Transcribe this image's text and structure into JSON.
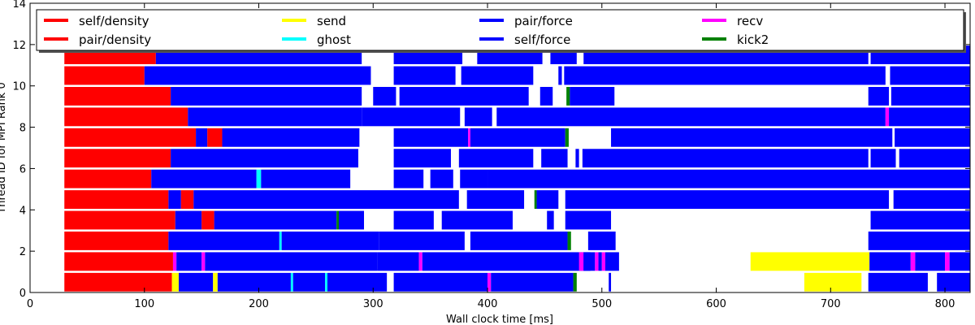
{
  "chart_data": {
    "type": "bar",
    "subtype": "horizontal-gantt",
    "title": "",
    "xlabel": "Wall clock time [ms]",
    "ylabel": "Thread ID for MPI Rank 0",
    "xlim": [
      0,
      822
    ],
    "ylim": [
      0,
      14
    ],
    "xticks": [
      0,
      100,
      200,
      300,
      400,
      500,
      600,
      700,
      800
    ],
    "yticks": [
      0,
      2,
      4,
      6,
      8,
      10,
      12,
      14
    ],
    "grid": false,
    "legend": {
      "placement": "top",
      "columns": 5,
      "entries": [
        {
          "name": "self/density",
          "color": "#ff0000"
        },
        {
          "name": "pair/density",
          "color": "#ff0000"
        },
        {
          "name": "send",
          "color": "#ffff00"
        },
        {
          "name": "ghost",
          "color": "#00ffff"
        },
        {
          "name": "pair/force",
          "color": "#0000ff"
        },
        {
          "name": "self/force",
          "color": "#0000ff"
        },
        {
          "name": "recv",
          "color": "#ff00ff"
        },
        {
          "name": "kick2",
          "color": "#008000"
        }
      ]
    },
    "colors": {
      "density": "#ff0000",
      "send": "#ffff00",
      "ghost": "#00ffff",
      "force": "#0000ff",
      "recv": "#ff00ff",
      "kick2": "#008000"
    },
    "threads": [
      {
        "id": 0,
        "tasks": [
          {
            "type": "density",
            "start": 30,
            "end": 124
          },
          {
            "type": "send",
            "start": 124,
            "end": 130
          },
          {
            "type": "force",
            "start": 130,
            "end": 160
          },
          {
            "type": "send",
            "start": 160,
            "end": 164
          },
          {
            "type": "force",
            "start": 164,
            "end": 228
          },
          {
            "type": "ghost",
            "start": 228,
            "end": 230
          },
          {
            "type": "force",
            "start": 230,
            "end": 258
          },
          {
            "type": "ghost",
            "start": 258,
            "end": 260
          },
          {
            "type": "force",
            "start": 260,
            "end": 312
          },
          {
            "type": "force",
            "start": 318,
            "end": 400
          },
          {
            "type": "recv",
            "start": 400,
            "end": 403
          },
          {
            "type": "force",
            "start": 403,
            "end": 475
          },
          {
            "type": "kick2",
            "start": 475,
            "end": 478
          },
          {
            "type": "force",
            "start": 506,
            "end": 508
          },
          {
            "type": "send",
            "start": 677,
            "end": 727
          },
          {
            "type": "force",
            "start": 733,
            "end": 785
          },
          {
            "type": "force",
            "start": 793,
            "end": 822
          }
        ]
      },
      {
        "id": 1,
        "tasks": [
          {
            "type": "density",
            "start": 30,
            "end": 125
          },
          {
            "type": "recv",
            "start": 125,
            "end": 128
          },
          {
            "type": "force",
            "start": 128,
            "end": 150
          },
          {
            "type": "recv",
            "start": 150,
            "end": 153
          },
          {
            "type": "force",
            "start": 153,
            "end": 304
          },
          {
            "type": "force",
            "start": 304,
            "end": 340
          },
          {
            "type": "recv",
            "start": 340,
            "end": 343
          },
          {
            "type": "force",
            "start": 343,
            "end": 490
          },
          {
            "type": "recv",
            "start": 480,
            "end": 484
          },
          {
            "type": "force",
            "start": 484,
            "end": 494
          },
          {
            "type": "recv",
            "start": 494,
            "end": 497
          },
          {
            "type": "force",
            "start": 497,
            "end": 500
          },
          {
            "type": "recv",
            "start": 500,
            "end": 503
          },
          {
            "type": "force",
            "start": 503,
            "end": 515
          },
          {
            "type": "send",
            "start": 630,
            "end": 734
          },
          {
            "type": "force",
            "start": 734,
            "end": 770
          },
          {
            "type": "recv",
            "start": 770,
            "end": 774
          },
          {
            "type": "force",
            "start": 774,
            "end": 800
          },
          {
            "type": "recv",
            "start": 800,
            "end": 804
          },
          {
            "type": "force",
            "start": 804,
            "end": 822
          }
        ]
      },
      {
        "id": 2,
        "tasks": [
          {
            "type": "density",
            "start": 30,
            "end": 121
          },
          {
            "type": "force",
            "start": 121,
            "end": 218
          },
          {
            "type": "ghost",
            "start": 218,
            "end": 220
          },
          {
            "type": "force",
            "start": 220,
            "end": 305
          },
          {
            "type": "force",
            "start": 305,
            "end": 380
          },
          {
            "type": "force",
            "start": 385,
            "end": 470
          },
          {
            "type": "kick2",
            "start": 470,
            "end": 473
          },
          {
            "type": "force",
            "start": 488,
            "end": 512
          },
          {
            "type": "force",
            "start": 733,
            "end": 822
          }
        ]
      },
      {
        "id": 3,
        "tasks": [
          {
            "type": "density",
            "start": 30,
            "end": 127
          },
          {
            "type": "force",
            "start": 127,
            "end": 150
          },
          {
            "type": "density",
            "start": 150,
            "end": 161
          },
          {
            "type": "force",
            "start": 161,
            "end": 268
          },
          {
            "type": "kick2",
            "start": 268,
            "end": 270
          },
          {
            "type": "force",
            "start": 270,
            "end": 292
          },
          {
            "type": "force",
            "start": 318,
            "end": 353
          },
          {
            "type": "force",
            "start": 360,
            "end": 422
          },
          {
            "type": "force",
            "start": 452,
            "end": 458
          },
          {
            "type": "force",
            "start": 468,
            "end": 508
          },
          {
            "type": "force",
            "start": 735,
            "end": 822
          }
        ]
      },
      {
        "id": 4,
        "tasks": [
          {
            "type": "density",
            "start": 30,
            "end": 121
          },
          {
            "type": "force",
            "start": 121,
            "end": 132
          },
          {
            "type": "density",
            "start": 132,
            "end": 143
          },
          {
            "type": "force",
            "start": 143,
            "end": 375
          },
          {
            "type": "force",
            "start": 382,
            "end": 432
          },
          {
            "type": "kick2",
            "start": 441,
            "end": 443
          },
          {
            "type": "force",
            "start": 443,
            "end": 462
          },
          {
            "type": "force",
            "start": 468,
            "end": 751
          },
          {
            "type": "force",
            "start": 755,
            "end": 822
          }
        ]
      },
      {
        "id": 5,
        "tasks": [
          {
            "type": "density",
            "start": 30,
            "end": 106
          },
          {
            "type": "force",
            "start": 106,
            "end": 198
          },
          {
            "type": "ghost",
            "start": 198,
            "end": 202
          },
          {
            "type": "force",
            "start": 202,
            "end": 280
          },
          {
            "type": "force",
            "start": 318,
            "end": 344
          },
          {
            "type": "force",
            "start": 350,
            "end": 370
          },
          {
            "type": "force",
            "start": 376,
            "end": 400
          },
          {
            "type": "force",
            "start": 400,
            "end": 822
          }
        ]
      },
      {
        "id": 6,
        "tasks": [
          {
            "type": "density",
            "start": 30,
            "end": 123
          },
          {
            "type": "force",
            "start": 123,
            "end": 287
          },
          {
            "type": "force",
            "start": 318,
            "end": 368
          },
          {
            "type": "force",
            "start": 375,
            "end": 440
          },
          {
            "type": "force",
            "start": 447,
            "end": 470
          },
          {
            "type": "force",
            "start": 477,
            "end": 480
          },
          {
            "type": "force",
            "start": 483,
            "end": 733
          },
          {
            "type": "force",
            "start": 735,
            "end": 757
          },
          {
            "type": "force",
            "start": 760,
            "end": 822
          }
        ]
      },
      {
        "id": 7,
        "tasks": [
          {
            "type": "density",
            "start": 30,
            "end": 145
          },
          {
            "type": "force",
            "start": 145,
            "end": 155
          },
          {
            "type": "density",
            "start": 155,
            "end": 168
          },
          {
            "type": "force",
            "start": 168,
            "end": 288
          },
          {
            "type": "force",
            "start": 318,
            "end": 383
          },
          {
            "type": "recv",
            "start": 383,
            "end": 385
          },
          {
            "type": "force",
            "start": 385,
            "end": 468
          },
          {
            "type": "kick2",
            "start": 468,
            "end": 471
          },
          {
            "type": "force",
            "start": 508,
            "end": 754
          },
          {
            "type": "force",
            "start": 756,
            "end": 822
          }
        ]
      },
      {
        "id": 8,
        "tasks": [
          {
            "type": "density",
            "start": 30,
            "end": 138
          },
          {
            "type": "force",
            "start": 138,
            "end": 290
          },
          {
            "type": "force",
            "start": 290,
            "end": 376
          },
          {
            "type": "force",
            "start": 380,
            "end": 404
          },
          {
            "type": "force",
            "start": 408,
            "end": 748
          },
          {
            "type": "recv",
            "start": 748,
            "end": 751
          },
          {
            "type": "force",
            "start": 751,
            "end": 822
          }
        ]
      },
      {
        "id": 9,
        "tasks": [
          {
            "type": "density",
            "start": 30,
            "end": 123
          },
          {
            "type": "force",
            "start": 123,
            "end": 290
          },
          {
            "type": "force",
            "start": 300,
            "end": 320
          },
          {
            "type": "force",
            "start": 323,
            "end": 436
          },
          {
            "type": "force",
            "start": 446,
            "end": 457
          },
          {
            "type": "kick2",
            "start": 469,
            "end": 472
          },
          {
            "type": "force",
            "start": 472,
            "end": 511
          },
          {
            "type": "force",
            "start": 733,
            "end": 751
          },
          {
            "type": "force",
            "start": 753,
            "end": 822
          }
        ]
      },
      {
        "id": 10,
        "tasks": [
          {
            "type": "density",
            "start": 30,
            "end": 100
          },
          {
            "type": "force",
            "start": 100,
            "end": 298
          },
          {
            "type": "force",
            "start": 318,
            "end": 372
          },
          {
            "type": "force",
            "start": 377,
            "end": 440
          },
          {
            "type": "force",
            "start": 462,
            "end": 465
          },
          {
            "type": "force",
            "start": 467,
            "end": 748
          },
          {
            "type": "force",
            "start": 752,
            "end": 822
          }
        ]
      },
      {
        "id": 11,
        "tasks": [
          {
            "type": "density",
            "start": 30,
            "end": 110
          },
          {
            "type": "force",
            "start": 110,
            "end": 290
          },
          {
            "type": "force",
            "start": 318,
            "end": 378
          },
          {
            "type": "force",
            "start": 391,
            "end": 448
          },
          {
            "type": "force",
            "start": 455,
            "end": 478
          },
          {
            "type": "force",
            "start": 484,
            "end": 733
          },
          {
            "type": "force",
            "start": 735,
            "end": 822
          }
        ]
      }
    ]
  }
}
